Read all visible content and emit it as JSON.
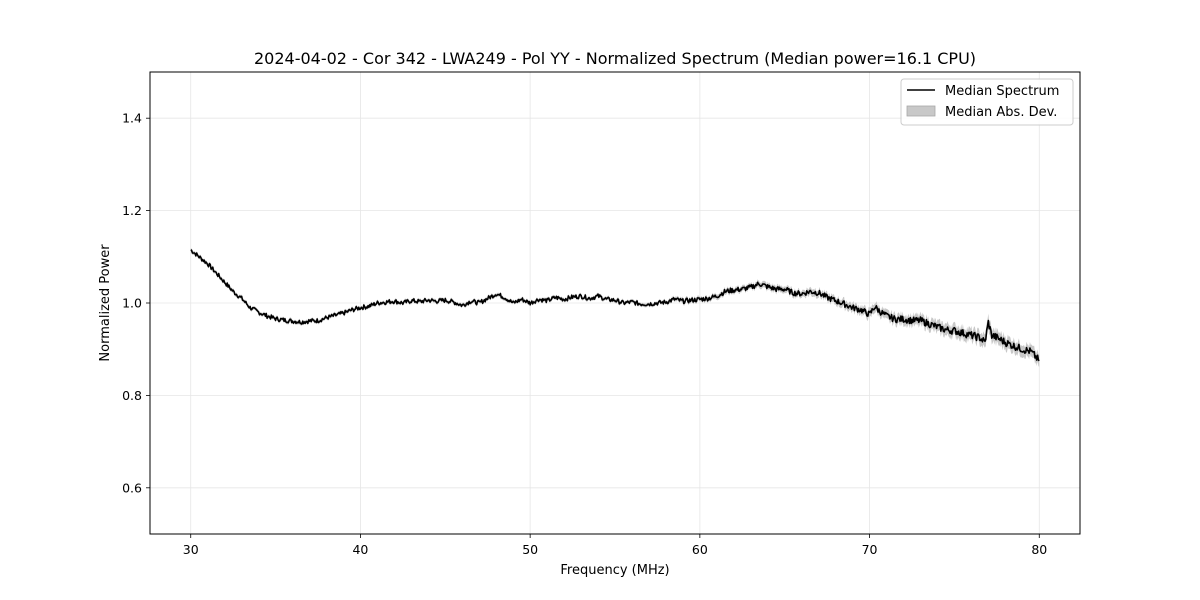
{
  "chart_data": {
    "type": "line",
    "title": "2024-04-02 - Cor 342 - LWA249 - Pol YY - Normalized Spectrum (Median power=16.1 CPU)",
    "xlabel": "Frequency (MHz)",
    "ylabel": "Normalized Power",
    "xlim": [
      27.6,
      82.4
    ],
    "ylim": [
      0.5,
      1.5
    ],
    "xticks": [
      30,
      40,
      50,
      60,
      70,
      80
    ],
    "yticks": [
      0.6,
      0.8,
      1.0,
      1.2,
      1.4
    ],
    "xtick_labels": [
      "30",
      "40",
      "50",
      "60",
      "70",
      "80"
    ],
    "ytick_labels": [
      "0.6",
      "0.8",
      "1.0",
      "1.2",
      "1.4"
    ],
    "grid": true,
    "legend_position": "top-right",
    "series": [
      {
        "name": "Median Spectrum",
        "color": "#000000",
        "kind": "line",
        "x": [
          30.0,
          30.5,
          31.0,
          31.5,
          32.0,
          32.5,
          33.0,
          33.5,
          34.0,
          34.5,
          35.0,
          35.5,
          36.0,
          36.5,
          37.0,
          37.5,
          38.0,
          38.5,
          39.0,
          39.5,
          40.0,
          40.5,
          41.0,
          41.5,
          42.0,
          42.5,
          43.0,
          43.5,
          44.0,
          44.5,
          45.0,
          45.5,
          46.0,
          46.5,
          47.0,
          47.5,
          48.0,
          48.5,
          49.0,
          49.5,
          50.0,
          50.5,
          51.0,
          51.5,
          52.0,
          52.5,
          53.0,
          53.5,
          54.0,
          54.5,
          55.0,
          55.5,
          56.0,
          56.5,
          57.0,
          57.5,
          58.0,
          58.5,
          59.0,
          59.5,
          60.0,
          60.5,
          61.0,
          61.5,
          62.0,
          62.5,
          63.0,
          63.5,
          64.0,
          64.5,
          65.0,
          65.5,
          66.0,
          66.5,
          67.0,
          67.5,
          68.0,
          68.5,
          69.0,
          69.5,
          70.0,
          70.3,
          70.6,
          71.0,
          71.5,
          72.0,
          72.5,
          73.0,
          73.5,
          74.0,
          74.5,
          75.0,
          75.5,
          76.0,
          76.5,
          76.8,
          77.0,
          77.2,
          77.5,
          78.0,
          78.5,
          79.0,
          79.5,
          80.0
        ],
        "values": [
          1.115,
          1.1,
          1.085,
          1.065,
          1.045,
          1.025,
          1.01,
          0.99,
          0.98,
          0.972,
          0.966,
          0.963,
          0.961,
          0.959,
          0.961,
          0.962,
          0.968,
          0.973,
          0.978,
          0.985,
          0.99,
          0.993,
          1.0,
          1.002,
          1.004,
          1.0,
          1.005,
          1.003,
          1.006,
          1.004,
          1.006,
          1.002,
          0.995,
          1.004,
          1.0,
          1.01,
          1.02,
          1.012,
          1.0,
          1.008,
          1.0,
          1.008,
          1.005,
          1.012,
          1.008,
          1.013,
          1.015,
          1.01,
          1.015,
          1.008,
          1.006,
          1.0,
          1.002,
          0.998,
          0.998,
          1.0,
          1.002,
          1.008,
          1.004,
          1.006,
          1.008,
          1.01,
          1.015,
          1.025,
          1.028,
          1.03,
          1.034,
          1.042,
          1.035,
          1.03,
          1.03,
          1.022,
          1.02,
          1.025,
          1.022,
          1.012,
          1.005,
          0.998,
          0.99,
          0.985,
          0.975,
          0.992,
          0.982,
          0.972,
          0.965,
          0.965,
          0.962,
          0.962,
          0.955,
          0.948,
          0.942,
          0.94,
          0.935,
          0.93,
          0.925,
          0.915,
          0.958,
          0.93,
          0.925,
          0.915,
          0.907,
          0.9,
          0.895,
          0.875
        ]
      },
      {
        "name": "Median Abs. Dev.",
        "color": "#c8c8c8",
        "kind": "band",
        "mad": [
          0.004,
          0.004,
          0.004,
          0.004,
          0.004,
          0.004,
          0.004,
          0.004,
          0.004,
          0.004,
          0.004,
          0.004,
          0.004,
          0.004,
          0.004,
          0.004,
          0.004,
          0.004,
          0.004,
          0.004,
          0.004,
          0.004,
          0.004,
          0.004,
          0.004,
          0.004,
          0.004,
          0.004,
          0.004,
          0.004,
          0.004,
          0.004,
          0.004,
          0.004,
          0.004,
          0.004,
          0.004,
          0.004,
          0.004,
          0.004,
          0.004,
          0.004,
          0.004,
          0.004,
          0.004,
          0.004,
          0.004,
          0.004,
          0.004,
          0.004,
          0.004,
          0.004,
          0.004,
          0.004,
          0.004,
          0.004,
          0.004,
          0.005,
          0.005,
          0.005,
          0.005,
          0.005,
          0.006,
          0.006,
          0.006,
          0.006,
          0.006,
          0.007,
          0.007,
          0.007,
          0.007,
          0.007,
          0.007,
          0.008,
          0.008,
          0.008,
          0.008,
          0.009,
          0.009,
          0.009,
          0.01,
          0.01,
          0.01,
          0.01,
          0.011,
          0.011,
          0.011,
          0.012,
          0.012,
          0.012,
          0.013,
          0.013,
          0.013,
          0.013,
          0.014,
          0.014,
          0.015,
          0.014,
          0.014,
          0.014,
          0.013,
          0.013,
          0.013,
          0.013
        ]
      }
    ]
  }
}
